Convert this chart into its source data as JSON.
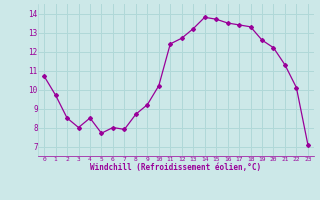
{
  "x": [
    0,
    1,
    2,
    3,
    4,
    5,
    6,
    7,
    8,
    9,
    10,
    11,
    12,
    13,
    14,
    15,
    16,
    17,
    18,
    19,
    20,
    21,
    22,
    23
  ],
  "y": [
    10.7,
    9.7,
    8.5,
    8.0,
    8.5,
    7.7,
    8.0,
    7.9,
    8.7,
    9.2,
    10.2,
    12.4,
    12.7,
    13.2,
    13.8,
    13.7,
    13.5,
    13.4,
    13.3,
    12.6,
    12.2,
    11.3,
    10.1,
    7.1
  ],
  "line_color": "#990099",
  "marker": "D",
  "marker_size": 2,
  "bg_color": "#cce8e8",
  "grid_color": "#b0d8d8",
  "xlabel": "Windchill (Refroidissement éolien,°C)",
  "xlabel_color": "#990099",
  "tick_color": "#990099",
  "ylim": [
    6.5,
    14.5
  ],
  "xlim": [
    -0.5,
    23.5
  ],
  "yticks": [
    7,
    8,
    9,
    10,
    11,
    12,
    13,
    14
  ],
  "xticks": [
    0,
    1,
    2,
    3,
    4,
    5,
    6,
    7,
    8,
    9,
    10,
    11,
    12,
    13,
    14,
    15,
    16,
    17,
    18,
    19,
    20,
    21,
    22,
    23
  ],
  "xtick_labels": [
    "0",
    "1",
    "2",
    "3",
    "4",
    "5",
    "6",
    "7",
    "8",
    "9",
    "10",
    "11",
    "12",
    "13",
    "14",
    "15",
    "16",
    "17",
    "18",
    "19",
    "20",
    "21",
    "22",
    "23"
  ]
}
